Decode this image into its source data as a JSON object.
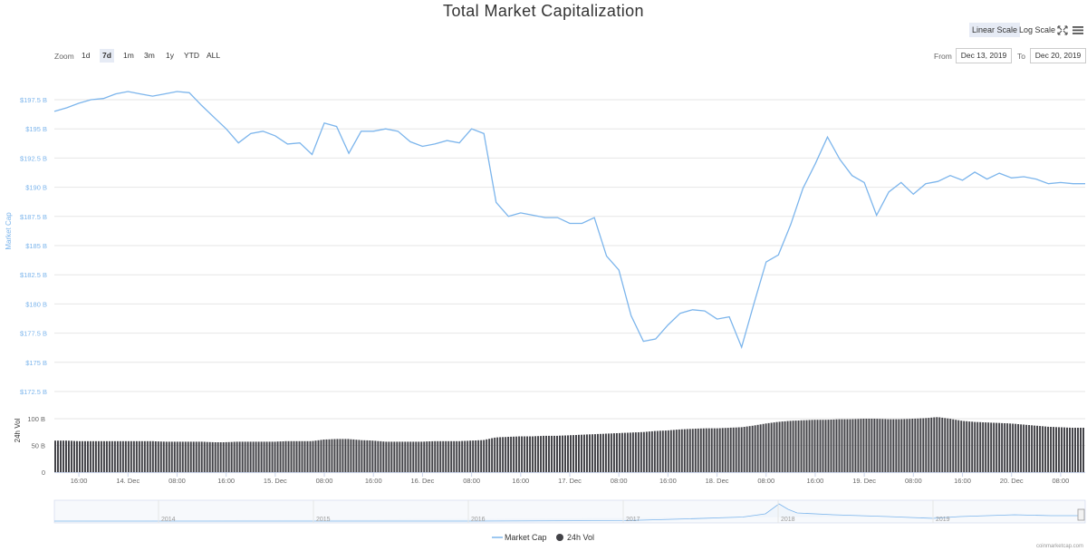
{
  "title": "Total Market Capitalization",
  "scale": {
    "linear_label": "Linear Scale",
    "log_label": "Log Scale"
  },
  "icons": [
    "fullscreen-icon",
    "menu-icon"
  ],
  "zoom": {
    "label": "Zoom",
    "options": [
      "1d",
      "7d",
      "1m",
      "3m",
      "1y",
      "YTD",
      "ALL"
    ],
    "selected": "7d"
  },
  "range": {
    "from_label": "From",
    "from_value": "Dec 13, 2019",
    "to_label": "To",
    "to_value": "Dec 20, 2019"
  },
  "legend": {
    "market_cap": "Market Cap",
    "volume": "24h Vol"
  },
  "credits": "coinmarketcap.com",
  "colors": {
    "line": "#7cb5ec",
    "volume": "#434348",
    "accent": "#e6ebf5"
  },
  "chart_data": [
    {
      "type": "line",
      "ylabel": "Market Cap",
      "ylim": [
        172.5,
        200
      ],
      "yticks": [
        "$172.5 B",
        "$175 B",
        "$177.5 B",
        "$180 B",
        "$182.5 B",
        "$185 B",
        "$187.5 B",
        "$190 B",
        "$192.5 B",
        "$195 B",
        "$197.5 B"
      ],
      "xticks": [
        "16:00",
        "14. Dec",
        "08:00",
        "16:00",
        "15. Dec",
        "08:00",
        "16:00",
        "16. Dec",
        "08:00",
        "16:00",
        "17. Dec",
        "08:00",
        "16:00",
        "18. Dec",
        "08:00",
        "16:00",
        "19. Dec",
        "08:00",
        "16:00",
        "20. Dec",
        "08:00"
      ],
      "x_hours": [
        0,
        2,
        4,
        6,
        8,
        10,
        12,
        14,
        16,
        18,
        20,
        22,
        24,
        26,
        28,
        30,
        32,
        34,
        36,
        38,
        40,
        42,
        44,
        46,
        48,
        50,
        52,
        54,
        56,
        58,
        60,
        62,
        64,
        66,
        68,
        70,
        72,
        74,
        76,
        78,
        80,
        82,
        84,
        86,
        88,
        90,
        92,
        94,
        96,
        98,
        100,
        102,
        104,
        106,
        108,
        110,
        112,
        114,
        116,
        118,
        120,
        122,
        124,
        126,
        128,
        130,
        132,
        134,
        136,
        138,
        140,
        142,
        144,
        146,
        148,
        150,
        152,
        154,
        156,
        158,
        160,
        162,
        164,
        166,
        168
      ],
      "series": [
        {
          "name": "Market Cap",
          "values": [
            196.5,
            196.8,
            197.2,
            197.5,
            197.6,
            198.0,
            198.2,
            198.0,
            197.8,
            198.0,
            198.2,
            198.1,
            197.0,
            196.0,
            195.0,
            193.8,
            194.6,
            194.8,
            194.4,
            193.7,
            193.8,
            192.8,
            195.5,
            195.2,
            192.9,
            194.8,
            194.8,
            195.0,
            194.8,
            193.9,
            193.5,
            193.7,
            194.0,
            193.8,
            195.0,
            194.6,
            188.7,
            187.5,
            187.8,
            187.6,
            187.4,
            187.4,
            186.9,
            186.9,
            187.4,
            184.1,
            182.9,
            179.0,
            176.8,
            177.0,
            178.2,
            179.2,
            179.5,
            179.4,
            178.7,
            178.9,
            176.3,
            180.0,
            183.6,
            184.2,
            186.8,
            189.9,
            192.0,
            194.3,
            192.4,
            191.0,
            190.4,
            187.6,
            189.6,
            190.4,
            189.4,
            190.3,
            190.5,
            191.0,
            190.6,
            191.3,
            190.7,
            191.2,
            190.8,
            190.9,
            190.7,
            190.3,
            190.4,
            190.3,
            190.3
          ]
        },
        {
          "name": "24h Vol",
          "ylabel": "24h Vol",
          "ylim": [
            0,
            100
          ],
          "yticks": [
            "0",
            "50 B",
            "100 B"
          ],
          "values": [
            59,
            59,
            58,
            58,
            58,
            58,
            58,
            58,
            58,
            57,
            57,
            57,
            57,
            56,
            56,
            57,
            57,
            57,
            57,
            58,
            58,
            58,
            61,
            62,
            62,
            60,
            59,
            57,
            57,
            57,
            57,
            58,
            58,
            58,
            59,
            60,
            65,
            66,
            67,
            67,
            68,
            68,
            69,
            70,
            71,
            72,
            73,
            74,
            75,
            77,
            78,
            80,
            81,
            82,
            82,
            83,
            84,
            87,
            91,
            94,
            96,
            97,
            98,
            98,
            99,
            99,
            100,
            100,
            99,
            99,
            100,
            101,
            103,
            100,
            96,
            94,
            93,
            92,
            91,
            89,
            87,
            85,
            84,
            83,
            83
          ]
        }
      ]
    },
    {
      "type": "area",
      "xticks": [
        "2014",
        "2015",
        "2016",
        "2017",
        "2018",
        "2019"
      ]
    }
  ]
}
